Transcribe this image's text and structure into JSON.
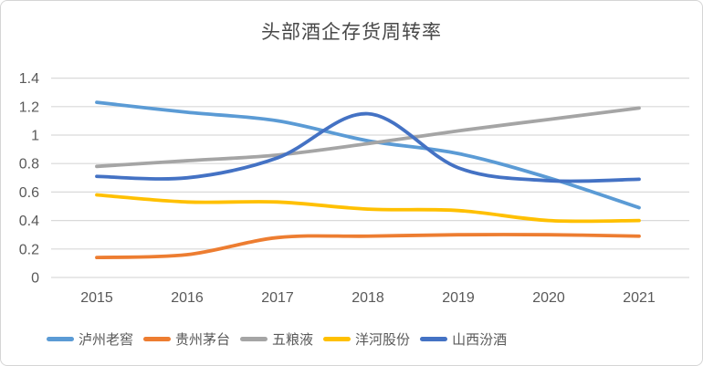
{
  "chart_data": {
    "type": "line",
    "title": "头部酒企存货周转率",
    "line_style": "smooth",
    "categories": [
      "2015",
      "2016",
      "2017",
      "2018",
      "2019",
      "2020",
      "2021"
    ],
    "series": [
      {
        "name": "泸州老窖",
        "color": "#5B9BD5",
        "values": [
          1.23,
          1.16,
          1.1,
          0.96,
          0.87,
          0.7,
          0.49
        ]
      },
      {
        "name": "贵州茅台",
        "color": "#ED7D31",
        "values": [
          0.14,
          0.16,
          0.28,
          0.29,
          0.3,
          0.3,
          0.29
        ]
      },
      {
        "name": "五粮液",
        "color": "#A5A5A5",
        "values": [
          0.78,
          0.82,
          0.86,
          0.94,
          1.03,
          1.11,
          1.19
        ]
      },
      {
        "name": "洋河股份",
        "color": "#FFC000",
        "values": [
          0.58,
          0.53,
          0.53,
          0.48,
          0.47,
          0.4,
          0.4
        ]
      },
      {
        "name": "山西汾酒",
        "color": "#4472C4",
        "values": [
          0.71,
          0.7,
          0.84,
          1.15,
          0.77,
          0.68,
          0.69
        ]
      }
    ],
    "y_ticks": [
      "0",
      "0.2",
      "0.4",
      "0.6",
      "0.8",
      "1",
      "1.2",
      "1.4"
    ],
    "ylim": [
      0,
      1.4
    ],
    "grid": "horizontal",
    "gridline_color": "#D9D9D9",
    "axis_label_color": "#595959",
    "legend_position": "bottom",
    "title_color": "#484848"
  }
}
